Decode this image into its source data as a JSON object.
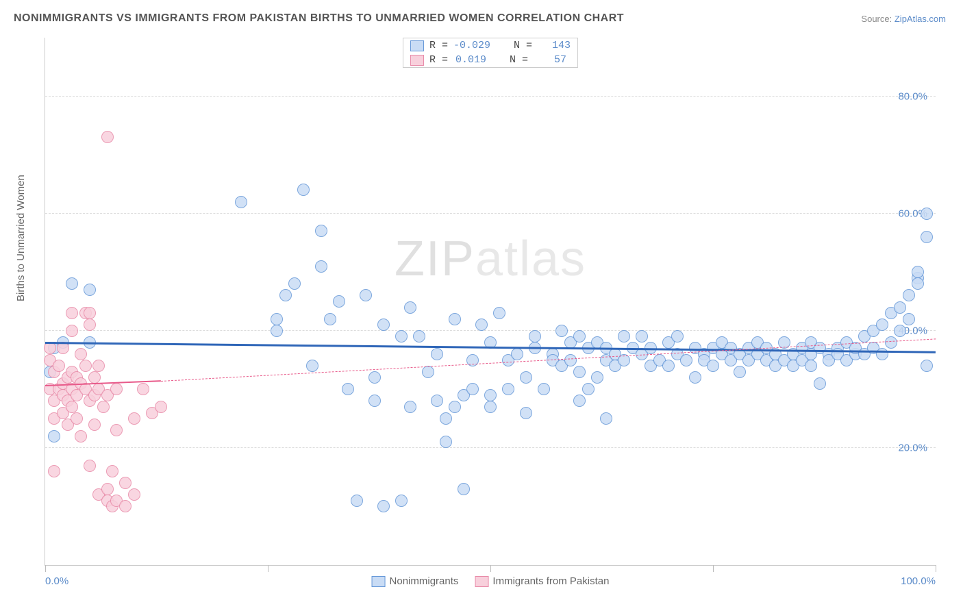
{
  "title": "NONIMMIGRANTS VS IMMIGRANTS FROM PAKISTAN BIRTHS TO UNMARRIED WOMEN CORRELATION CHART",
  "source_label": "Source:",
  "source_name": "ZipAtlas.com",
  "ylabel": "Births to Unmarried Women",
  "watermark": {
    "left": "ZIP",
    "right": "atlas"
  },
  "chart": {
    "type": "scatter",
    "xlim": [
      0,
      100
    ],
    "ylim": [
      0,
      90
    ],
    "yticks": [
      {
        "v": 20,
        "label": "20.0%"
      },
      {
        "v": 40,
        "label": "40.0%"
      },
      {
        "v": 60,
        "label": "60.0%"
      },
      {
        "v": 80,
        "label": "80.0%"
      }
    ],
    "xticks_minor": [
      0,
      25,
      50,
      75,
      100
    ],
    "xticks_labeled": [
      {
        "v": 0,
        "label": "0.0%"
      },
      {
        "v": 100,
        "label": "100.0%"
      }
    ],
    "grid_color": "#dcdcdc",
    "background_color": "#ffffff",
    "marker_radius": 8,
    "marker_fill_opacity": 0.25,
    "marker_stroke_opacity": 0.7,
    "stats": [
      {
        "swatch_fill": "#c9dcf5",
        "swatch_border": "#6698d8",
        "R": "-0.029",
        "N": "143"
      },
      {
        "swatch_fill": "#f8d0dc",
        "swatch_border": "#e88aa8",
        "R": "0.019",
        "N": "57"
      }
    ],
    "bottom_legend": [
      {
        "swatch_fill": "#c9dcf5",
        "swatch_border": "#6698d8",
        "label": "Nonimmigrants"
      },
      {
        "swatch_fill": "#f8d0dc",
        "swatch_border": "#e88aa8",
        "label": "Immigrants from Pakistan"
      }
    ]
  },
  "series": [
    {
      "name": "Nonimmigrants",
      "color": "#6698d8",
      "fill": "#c9dcf5",
      "trend": {
        "x1": 0,
        "y1": 37.8,
        "x2": 100,
        "y2": 36.2,
        "color": "#2f66b8",
        "width": 3,
        "dashed_from_x": 100
      },
      "points": [
        [
          0.5,
          33
        ],
        [
          1,
          37
        ],
        [
          1,
          22
        ],
        [
          2,
          38
        ],
        [
          3,
          48
        ],
        [
          5,
          38
        ],
        [
          5,
          47
        ],
        [
          22,
          62
        ],
        [
          26,
          40
        ],
        [
          26,
          42
        ],
        [
          27,
          46
        ],
        [
          28,
          48
        ],
        [
          29,
          64
        ],
        [
          30,
          34
        ],
        [
          31,
          57
        ],
        [
          31,
          51
        ],
        [
          32,
          42
        ],
        [
          33,
          45
        ],
        [
          34,
          30
        ],
        [
          35,
          11
        ],
        [
          36,
          46
        ],
        [
          37,
          32
        ],
        [
          37,
          28
        ],
        [
          38,
          41
        ],
        [
          38,
          10
        ],
        [
          40,
          39
        ],
        [
          40,
          11
        ],
        [
          41,
          44
        ],
        [
          41,
          27
        ],
        [
          42,
          39
        ],
        [
          43,
          33
        ],
        [
          44,
          36
        ],
        [
          44,
          28
        ],
        [
          45,
          21
        ],
        [
          45,
          25
        ],
        [
          46,
          42
        ],
        [
          46,
          27
        ],
        [
          47,
          29
        ],
        [
          47,
          13
        ],
        [
          48,
          35
        ],
        [
          48,
          30
        ],
        [
          49,
          41
        ],
        [
          50,
          38
        ],
        [
          50,
          29
        ],
        [
          50,
          27
        ],
        [
          51,
          43
        ],
        [
          52,
          30
        ],
        [
          52,
          35
        ],
        [
          53,
          36
        ],
        [
          54,
          26
        ],
        [
          54,
          32
        ],
        [
          55,
          37
        ],
        [
          55,
          39
        ],
        [
          56,
          30
        ],
        [
          57,
          36
        ],
        [
          57,
          35
        ],
        [
          58,
          34
        ],
        [
          58,
          40
        ],
        [
          59,
          35
        ],
        [
          59,
          38
        ],
        [
          60,
          33
        ],
        [
          60,
          39
        ],
        [
          61,
          37
        ],
        [
          62,
          38
        ],
        [
          62,
          32
        ],
        [
          63,
          35
        ],
        [
          63,
          37
        ],
        [
          64,
          36
        ],
        [
          64,
          34
        ],
        [
          65,
          39
        ],
        [
          65,
          35
        ],
        [
          66,
          37
        ],
        [
          67,
          36
        ],
        [
          67,
          39
        ],
        [
          68,
          34
        ],
        [
          68,
          37
        ],
        [
          69,
          35
        ],
        [
          70,
          38
        ],
        [
          70,
          34
        ],
        [
          71,
          36
        ],
        [
          71,
          39
        ],
        [
          72,
          35
        ],
        [
          73,
          37
        ],
        [
          73,
          32
        ],
        [
          74,
          36
        ],
        [
          74,
          35
        ],
        [
          75,
          37
        ],
        [
          75,
          34
        ],
        [
          76,
          36
        ],
        [
          76,
          38
        ],
        [
          77,
          35
        ],
        [
          77,
          37
        ],
        [
          78,
          36
        ],
        [
          78,
          33
        ],
        [
          79,
          37
        ],
        [
          79,
          35
        ],
        [
          80,
          36
        ],
        [
          80,
          38
        ],
        [
          81,
          35
        ],
        [
          81,
          37
        ],
        [
          82,
          34
        ],
        [
          82,
          36
        ],
        [
          83,
          35
        ],
        [
          83,
          38
        ],
        [
          84,
          36
        ],
        [
          84,
          34
        ],
        [
          85,
          37
        ],
        [
          85,
          35
        ],
        [
          86,
          36
        ],
        [
          86,
          38
        ],
        [
          87,
          31
        ],
        [
          87,
          37
        ],
        [
          88,
          36
        ],
        [
          88,
          35
        ],
        [
          89,
          37
        ],
        [
          89,
          36
        ],
        [
          90,
          35
        ],
        [
          90,
          38
        ],
        [
          91,
          36
        ],
        [
          91,
          37
        ],
        [
          92,
          36
        ],
        [
          92,
          39
        ],
        [
          93,
          37
        ],
        [
          93,
          40
        ],
        [
          94,
          36
        ],
        [
          94,
          41
        ],
        [
          95,
          38
        ],
        [
          95,
          43
        ],
        [
          96,
          40
        ],
        [
          96,
          44
        ],
        [
          97,
          42
        ],
        [
          97,
          46
        ],
        [
          98,
          49
        ],
        [
          98,
          48
        ],
        [
          98,
          50
        ],
        [
          99,
          56
        ],
        [
          99,
          60
        ],
        [
          99,
          34
        ],
        [
          86,
          34
        ],
        [
          60,
          28
        ],
        [
          63,
          25
        ],
        [
          61,
          30
        ]
      ]
    },
    {
      "name": "Immigrants from Pakistan",
      "color": "#e88aa8",
      "fill": "#f8d0dc",
      "trend": {
        "x1": 0,
        "y1": 30.5,
        "x2": 13,
        "y2": 31.3,
        "extend_to_x": 100,
        "extend_to_y": 38.5,
        "color": "#e85a8a",
        "width": 2,
        "dashed_from_x": 13
      },
      "points": [
        [
          0.5,
          37
        ],
        [
          0.5,
          35
        ],
        [
          0.5,
          30
        ],
        [
          1,
          33
        ],
        [
          1,
          28
        ],
        [
          1,
          25
        ],
        [
          1,
          16
        ],
        [
          1.5,
          30
        ],
        [
          1.5,
          34
        ],
        [
          2,
          31
        ],
        [
          2,
          29
        ],
        [
          2,
          37
        ],
        [
          2,
          26
        ],
        [
          2.5,
          32
        ],
        [
          2.5,
          28
        ],
        [
          2.5,
          24
        ],
        [
          3,
          30
        ],
        [
          3,
          33
        ],
        [
          3,
          27
        ],
        [
          3,
          43
        ],
        [
          3,
          40
        ],
        [
          3.5,
          29
        ],
        [
          3.5,
          32
        ],
        [
          3.5,
          25
        ],
        [
          4,
          36
        ],
        [
          4,
          31
        ],
        [
          4,
          22
        ],
        [
          4.5,
          30
        ],
        [
          4.5,
          43
        ],
        [
          4.5,
          34
        ],
        [
          5,
          28
        ],
        [
          5,
          17
        ],
        [
          5,
          41
        ],
        [
          5,
          43
        ],
        [
          5.5,
          32
        ],
        [
          5.5,
          24
        ],
        [
          5.5,
          29
        ],
        [
          6,
          30
        ],
        [
          6,
          12
        ],
        [
          6,
          34
        ],
        [
          6.5,
          27
        ],
        [
          7,
          29
        ],
        [
          7,
          13
        ],
        [
          7,
          11
        ],
        [
          7.5,
          10
        ],
        [
          7.5,
          16
        ],
        [
          7,
          73
        ],
        [
          8,
          30
        ],
        [
          8,
          23
        ],
        [
          8,
          11
        ],
        [
          9,
          14
        ],
        [
          9,
          10
        ],
        [
          10,
          12
        ],
        [
          10,
          25
        ],
        [
          11,
          30
        ],
        [
          12,
          26
        ],
        [
          13,
          27
        ]
      ]
    }
  ]
}
